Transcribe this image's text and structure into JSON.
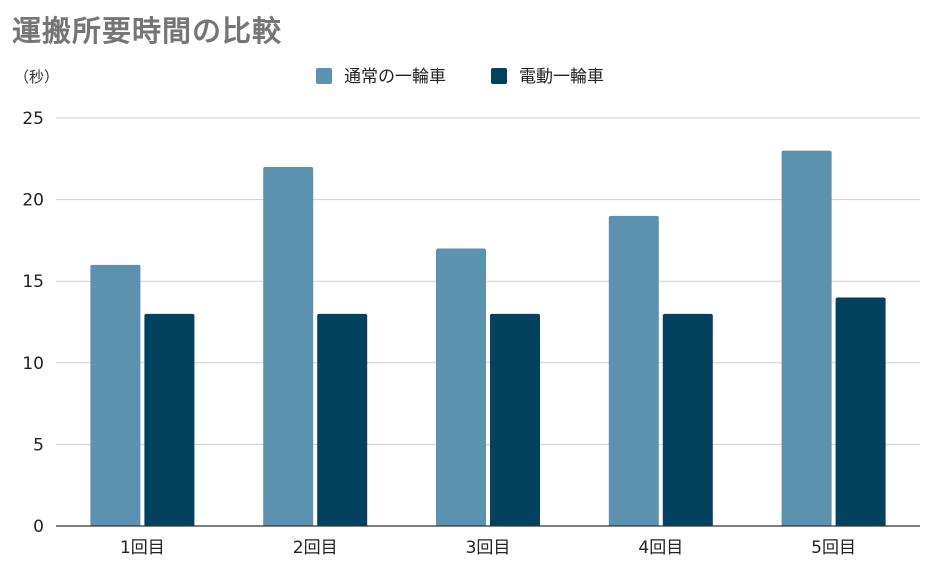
{
  "chart_data": {
    "type": "bar",
    "title": "運搬所要時間の比較",
    "ylabel": "（秒）",
    "xlabel": "",
    "categories": [
      "1回目",
      "2回目",
      "3回目",
      "4回目",
      "5回目"
    ],
    "series": [
      {
        "name": "通常の一輪車",
        "color": "#5b92b0",
        "values": [
          16,
          22,
          17,
          19,
          23
        ]
      },
      {
        "name": "電動一輪車",
        "color": "#02425f",
        "values": [
          13,
          13,
          13,
          13,
          14
        ]
      }
    ],
    "ylim": [
      0,
      25
    ],
    "yticks": [
      0,
      5,
      10,
      15,
      20,
      25
    ],
    "grid": true,
    "legend_position": "top-center"
  }
}
